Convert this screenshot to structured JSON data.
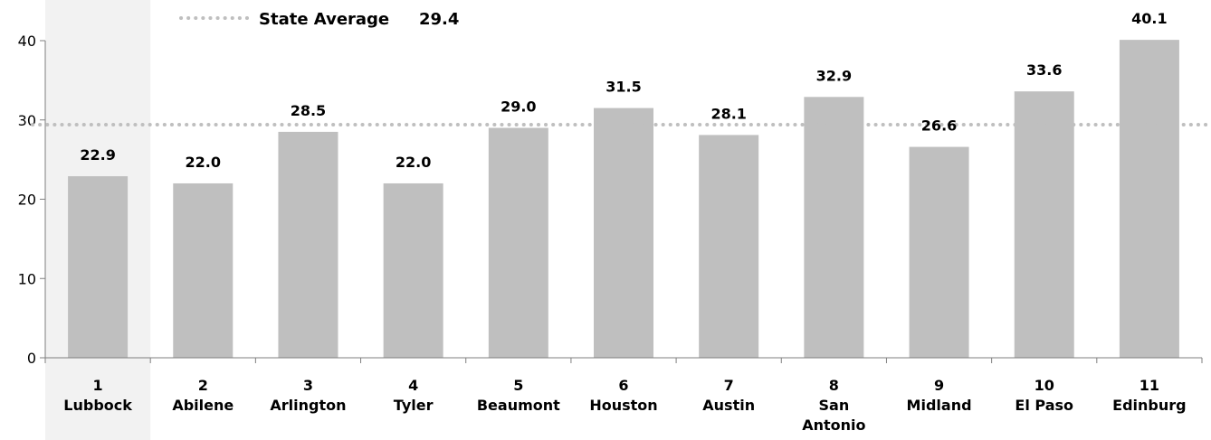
{
  "chart_data": {
    "type": "bar",
    "categories": [
      [
        "1",
        "Lubbock"
      ],
      [
        "2",
        "Abilene"
      ],
      [
        "3",
        "Arlington"
      ],
      [
        "4",
        "Tyler"
      ],
      [
        "5",
        "Beaumont"
      ],
      [
        "6",
        "Houston"
      ],
      [
        "7",
        "Austin"
      ],
      [
        "8",
        "San",
        "Antonio"
      ],
      [
        "9",
        "Midland"
      ],
      [
        "10",
        "El Paso"
      ],
      [
        "11",
        "Edinburg"
      ]
    ],
    "values": [
      22.9,
      22.0,
      28.5,
      22.0,
      29.0,
      31.5,
      28.1,
      32.9,
      26.6,
      33.6,
      40.1
    ],
    "value_labels": [
      "22.9",
      "22.0",
      "28.5",
      "22.0",
      "29.0",
      "31.5",
      "28.1",
      "32.9",
      "26.6",
      "33.6",
      "40.1"
    ],
    "ylim": [
      0,
      40
    ],
    "yticks": [
      "0",
      "10",
      "20",
      "30",
      "40"
    ],
    "reference_line": {
      "label": "State Average",
      "value": 29.4,
      "value_label": "29.4",
      "style": "dotted"
    },
    "highlighted_category_index": 0,
    "colors": {
      "bar": "#bfbfbf",
      "highlight_band": "#f2f2f2",
      "reference_line": "#bfbfbf",
      "axis": "#7f7f7f"
    },
    "grid": false
  }
}
